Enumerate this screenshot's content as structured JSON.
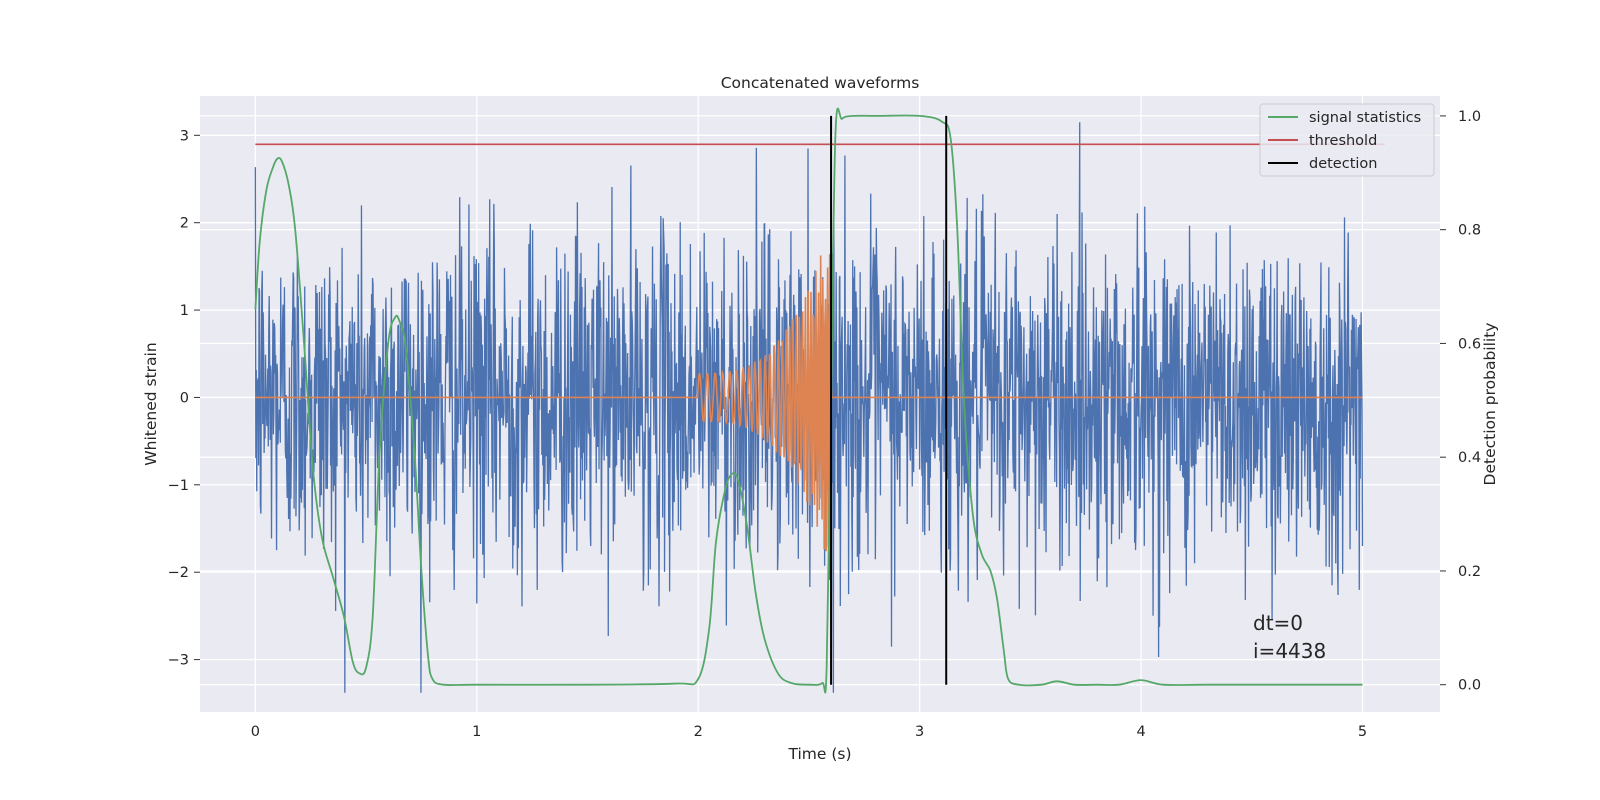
{
  "chart_data": {
    "type": "line",
    "title": "Concatenated waveforms",
    "xlabel": "Time (s)",
    "ylabel": "Whitened strain",
    "y2label": "Detection probability",
    "xlim": [
      -0.25,
      5.35
    ],
    "ylim": [
      -3.6,
      3.45
    ],
    "y2lim": [
      -0.048,
      1.035
    ],
    "xticks": [
      0,
      1,
      2,
      3,
      4,
      5
    ],
    "xtick_labels": [
      "0",
      "1",
      "2",
      "3",
      "4",
      "5"
    ],
    "yticks": [
      -3,
      -2,
      -1,
      0,
      1,
      2,
      3
    ],
    "ytick_labels": [
      "−3",
      "−2",
      "−1",
      "0",
      "1",
      "2",
      "3"
    ],
    "y2ticks": [
      0.0,
      0.2,
      0.4,
      0.6,
      0.8,
      1.0
    ],
    "y2tick_labels": [
      "0.0",
      "0.2",
      "0.4",
      "0.6",
      "0.8",
      "1.0"
    ],
    "grid": true,
    "legend_position": "top-right",
    "series": [
      {
        "axis": "left",
        "kind": "noise",
        "color": "#4c72b0",
        "x_range": [
          0,
          5
        ],
        "envelope_typical": 1.0,
        "peak_max": 3.15,
        "peak_min": -3.38
      },
      {
        "axis": "left",
        "kind": "chirp",
        "color": "#dd8452",
        "x_range": [
          0,
          5
        ],
        "chirp_start": 2.0,
        "chirp_end": 2.6,
        "amplitude_start": 0.28,
        "amplitude_end": 2.0
      },
      {
        "name": "signal statistics",
        "axis": "right",
        "color": "#55a868",
        "x": [
          0,
          0.02,
          0.05,
          0.08,
          0.1,
          0.12,
          0.15,
          0.18,
          0.22,
          0.26,
          0.3,
          0.35,
          0.4,
          0.44,
          0.47,
          0.5,
          0.53,
          0.56,
          0.6,
          0.63,
          0.65,
          0.68,
          0.72,
          0.75,
          0.78,
          0.8,
          0.85,
          1.0,
          1.5,
          1.9,
          2.0,
          2.05,
          2.08,
          2.12,
          2.15,
          2.18,
          2.22,
          2.26,
          2.3,
          2.36,
          2.42,
          2.5,
          2.56,
          2.58,
          2.6,
          2.62,
          2.65,
          2.7,
          2.8,
          3.0,
          3.1,
          3.14,
          3.17,
          3.2,
          3.24,
          3.28,
          3.32,
          3.35,
          3.38,
          3.4,
          3.45,
          3.55,
          3.62,
          3.7,
          3.8,
          3.9,
          4.0,
          4.1,
          4.3,
          4.6,
          5.0
        ],
        "y": [
          0.66,
          0.78,
          0.87,
          0.91,
          0.925,
          0.92,
          0.88,
          0.8,
          0.6,
          0.38,
          0.26,
          0.19,
          0.12,
          0.04,
          0.02,
          0.03,
          0.12,
          0.4,
          0.6,
          0.645,
          0.64,
          0.59,
          0.4,
          0.2,
          0.05,
          0.01,
          0.0,
          0.0,
          0.0,
          0.002,
          0.01,
          0.1,
          0.25,
          0.34,
          0.37,
          0.36,
          0.28,
          0.16,
          0.08,
          0.02,
          0.003,
          0.0,
          0.003,
          0.03,
          0.5,
          0.97,
          0.995,
          1.0,
          1.0,
          1.0,
          0.99,
          0.96,
          0.8,
          0.5,
          0.3,
          0.23,
          0.2,
          0.15,
          0.06,
          0.01,
          0.0,
          0.0,
          0.006,
          0.0,
          0.0,
          0.0,
          0.008,
          0.0,
          0.0,
          0.0,
          0.0
        ]
      },
      {
        "name": "threshold",
        "axis": "right",
        "color": "#c44e52",
        "x": [
          0,
          5.1
        ],
        "y": [
          0.95,
          0.95
        ]
      },
      {
        "name": "detection",
        "axis": "right",
        "color": "#000000",
        "kind": "vlines",
        "x": [
          2.6,
          3.12
        ]
      }
    ],
    "annotations": [
      "dt=0",
      "i=4438"
    ]
  }
}
